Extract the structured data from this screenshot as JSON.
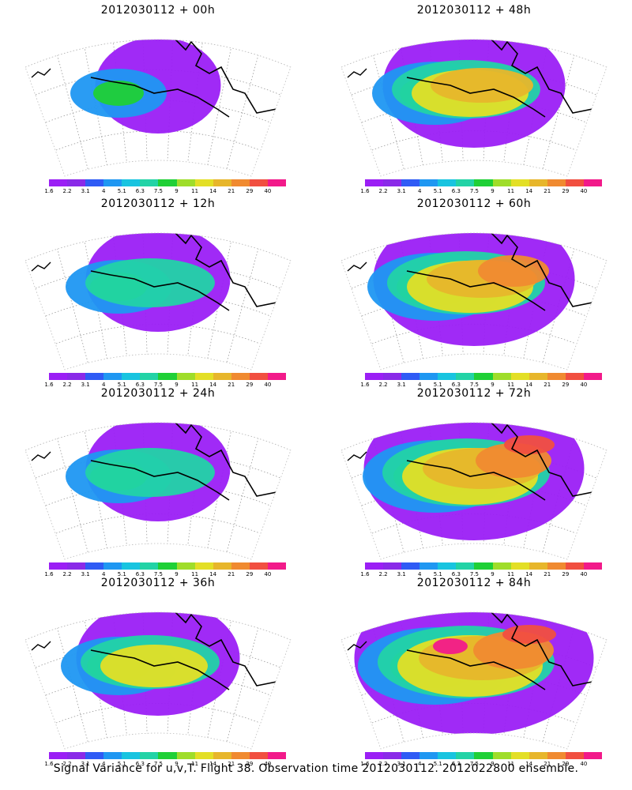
{
  "panels": [
    {
      "title": "2012030112 + 00h",
      "level": 1
    },
    {
      "title": "2012030112 + 48h",
      "level": 4
    },
    {
      "title": "2012030112 + 12h",
      "level": 2
    },
    {
      "title": "2012030112 + 60h",
      "level": 5
    },
    {
      "title": "2012030112 + 24h",
      "level": 2
    },
    {
      "title": "2012030112 + 72h",
      "level": 6
    },
    {
      "title": "2012030112 + 36h",
      "level": 3
    },
    {
      "title": "2012030112 + 84h",
      "level": 7
    }
  ],
  "colorbar": {
    "labels": [
      "1.6",
      "2.2",
      "3.1",
      "4",
      "5.1",
      "6.3",
      "7.5",
      "9",
      "11",
      "14",
      "21",
      "29",
      "40"
    ],
    "colors": [
      "#9b1ff5",
      "#8a2ae8",
      "#2f5bf5",
      "#1f97f2",
      "#18c4e0",
      "#22d3a6",
      "#1fd036",
      "#9fdd2a",
      "#e3df26",
      "#e7b62b",
      "#f08a30",
      "#f14f40",
      "#f21a8a"
    ]
  },
  "footer": "Signal Variance for u,v,T. Flight 38. Observation time 2012030112. 2012022800 ensemble."
}
